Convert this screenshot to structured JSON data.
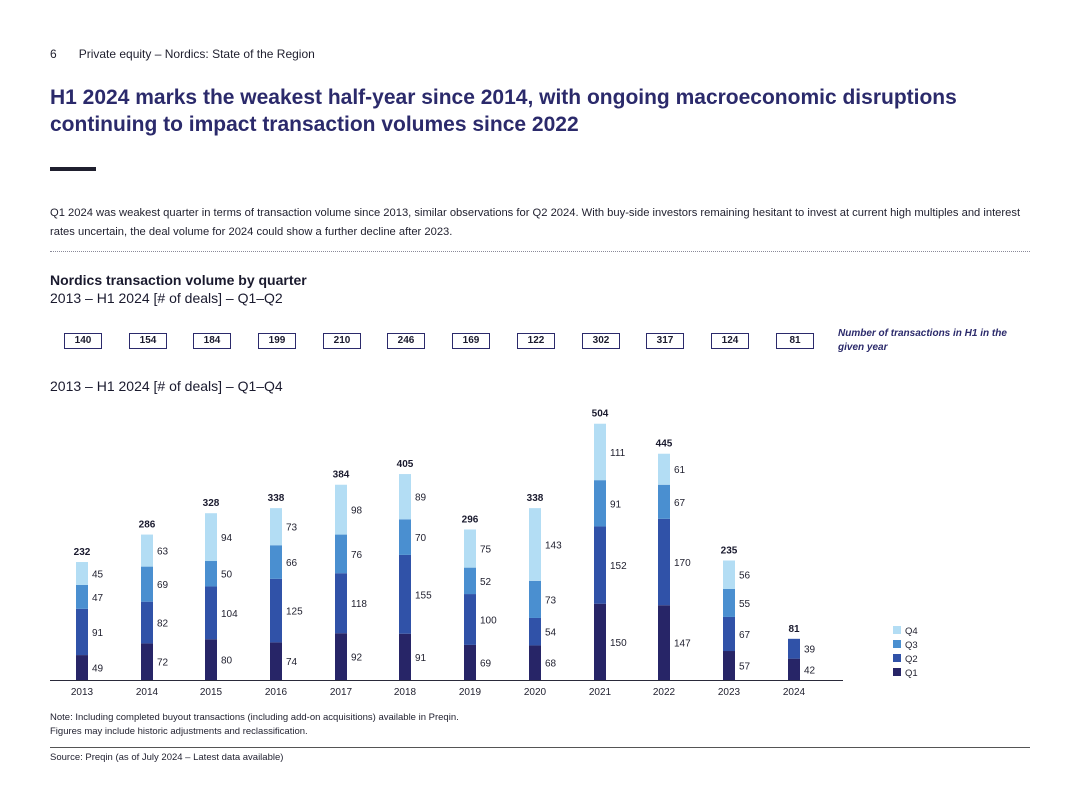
{
  "header": {
    "page_number": "6",
    "running_title": "Private equity – Nordics: State of the Region"
  },
  "title": "H1 2024 marks the weakest half-year since 2014, with ongoing macroeconomic disruptions continuing to impact transaction volumes since 2022",
  "intro": "Q1 2024 was weakest quarter in terms of transaction volume since 2013, similar observations for Q2 2024. With buy-side investors remaining hesitant to invest at current high multiples and interest rates uncertain, the deal volume for 2024 could show a further decline after 2023.",
  "chart_header": {
    "title": "Nordics transaction volume by quarter",
    "subtitle_h1": "2013 – H1 2024 [# of deals] – Q1–Q2",
    "subtitle_full": "2013 – H1 2024 [# of deals] – Q1–Q4"
  },
  "h1_totals": [
    "140",
    "154",
    "184",
    "199",
    "210",
    "246",
    "169",
    "122",
    "302",
    "317",
    "124",
    "81"
  ],
  "h1_note": "Number of transactions in H1 in the given year",
  "colors": {
    "q1": "#272567",
    "q2": "#3052a8",
    "q3": "#4a8fd0",
    "q4": "#b3ddf4"
  },
  "chart_data": {
    "type": "bar",
    "stacked": true,
    "categories": [
      "2013",
      "2014",
      "2015",
      "2016",
      "2017",
      "2018",
      "2019",
      "2020",
      "2021",
      "2022",
      "2023",
      "2024"
    ],
    "series": [
      {
        "name": "Q1",
        "values": [
          49,
          72,
          80,
          74,
          92,
          91,
          69,
          68,
          150,
          147,
          57,
          42
        ]
      },
      {
        "name": "Q2",
        "values": [
          91,
          82,
          104,
          125,
          118,
          155,
          100,
          54,
          152,
          170,
          67,
          39
        ]
      },
      {
        "name": "Q3",
        "values": [
          47,
          69,
          50,
          66,
          76,
          70,
          52,
          73,
          91,
          67,
          55,
          0
        ]
      },
      {
        "name": "Q4",
        "values": [
          45,
          63,
          94,
          73,
          98,
          89,
          75,
          143,
          111,
          61,
          56,
          0
        ]
      }
    ],
    "totals": [
      "232",
      "286",
      "328",
      "338",
      "384",
      "405",
      "296",
      "338",
      "504",
      "445",
      "235",
      "81"
    ],
    "legend": [
      "Q4",
      "Q3",
      "Q2",
      "Q1"
    ],
    "legend_position": "right"
  },
  "footnote": "Note: Including completed buyout transactions (including add-on acquisitions) available in Preqin. Figures may include historic adjustments and reclassification.",
  "source": "Source: Preqin (as of July 2024 – Latest data available)"
}
